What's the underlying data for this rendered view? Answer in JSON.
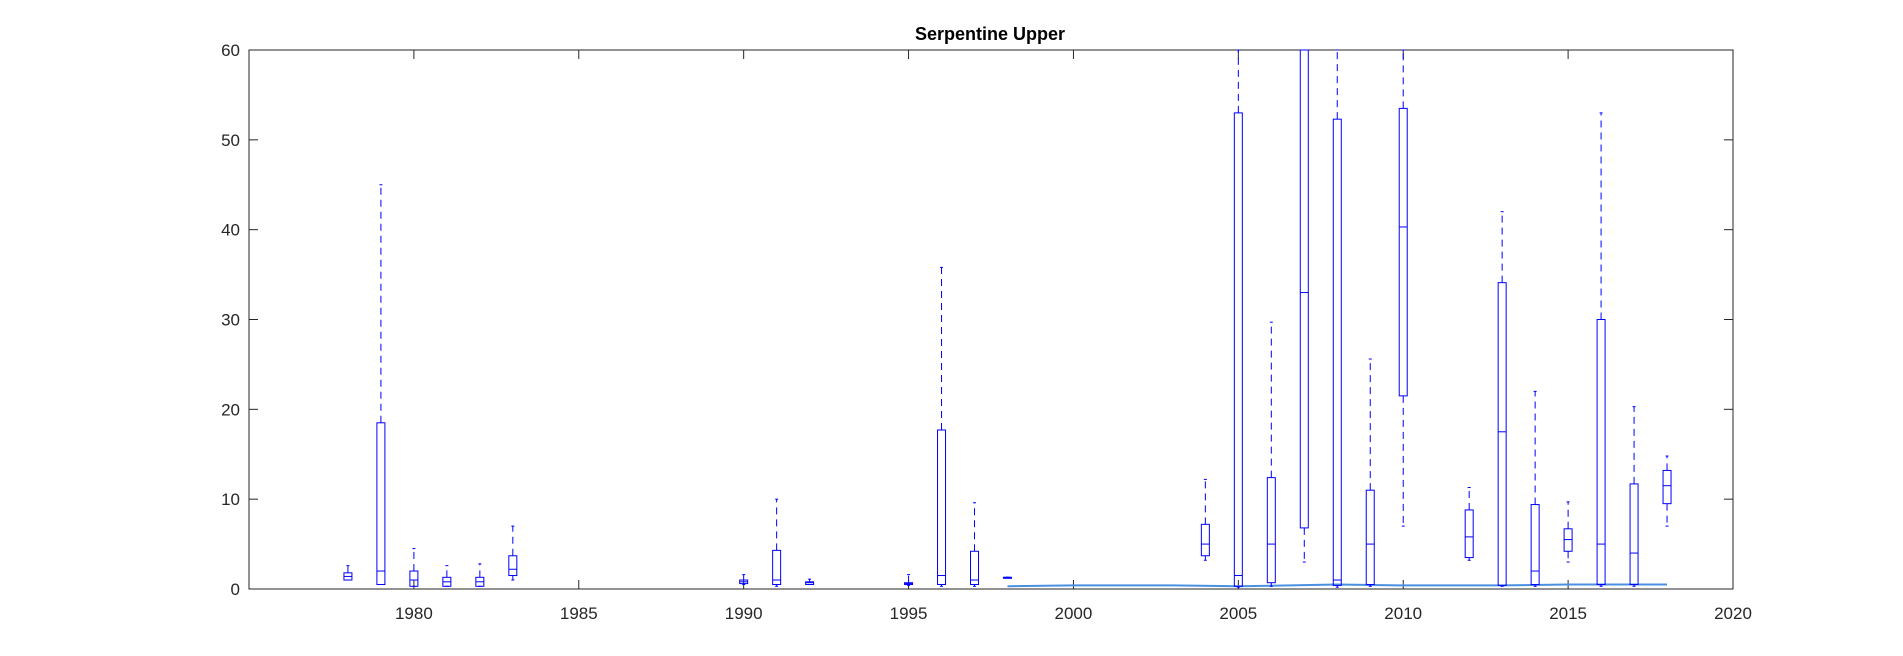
{
  "colors": {
    "box": "#0000ff",
    "trend": "#4a90e2",
    "axis": "#262626"
  },
  "chart_data": {
    "type": "box",
    "title": "Serpentine Upper",
    "xlabel": "",
    "ylabel": "",
    "xlim": [
      1975,
      2020
    ],
    "ylim": [
      0,
      60
    ],
    "xticks": [
      1980,
      1985,
      1990,
      1995,
      2000,
      2005,
      2010,
      2015,
      2020
    ],
    "yticks": [
      0,
      10,
      20,
      30,
      40,
      50,
      60
    ],
    "grid": false,
    "boxes": [
      {
        "year": 1978,
        "wlo": 1.0,
        "q1": 1.0,
        "median": 1.4,
        "q3": 1.8,
        "whi": 2.6
      },
      {
        "year": 1979,
        "wlo": 0.5,
        "q1": 0.5,
        "median": 2.0,
        "q3": 18.5,
        "whi": 45.0
      },
      {
        "year": 1980,
        "wlo": 0.3,
        "q1": 0.3,
        "median": 1.0,
        "q3": 2.0,
        "whi": 4.5
      },
      {
        "year": 1981,
        "wlo": 0.3,
        "q1": 0.3,
        "median": 0.8,
        "q3": 1.3,
        "whi": 2.6
      },
      {
        "year": 1982,
        "wlo": 0.3,
        "q1": 0.3,
        "median": 0.8,
        "q3": 1.3,
        "whi": 2.8
      },
      {
        "year": 1983,
        "wlo": 1.0,
        "q1": 1.5,
        "median": 2.2,
        "q3": 3.7,
        "whi": 7.0
      },
      {
        "year": 1990,
        "wlo": 0.5,
        "q1": 0.6,
        "median": 0.8,
        "q3": 1.0,
        "whi": 1.6
      },
      {
        "year": 1991,
        "wlo": 0.3,
        "q1": 0.5,
        "median": 1.0,
        "q3": 4.3,
        "whi": 10.0
      },
      {
        "year": 1992,
        "wlo": 0.5,
        "q1": 0.5,
        "median": 0.7,
        "q3": 0.8,
        "whi": 1.1
      },
      {
        "year": 1995,
        "wlo": 0.4,
        "q1": 0.5,
        "median": 0.6,
        "q3": 0.7,
        "whi": 1.6
      },
      {
        "year": 1996,
        "wlo": 0.3,
        "q1": 0.5,
        "median": 1.5,
        "q3": 17.7,
        "whi": 35.8
      },
      {
        "year": 1997,
        "wlo": 0.3,
        "q1": 0.5,
        "median": 1.0,
        "q3": 4.2,
        "whi": 9.6
      },
      {
        "year": 1998,
        "wlo": 1.3,
        "q1": 1.3,
        "median": 1.3,
        "q3": 1.3,
        "whi": 1.3
      },
      {
        "year": 2004,
        "wlo": 3.2,
        "q1": 3.7,
        "median": 5.0,
        "q3": 7.2,
        "whi": 12.2
      },
      {
        "year": 2005,
        "wlo": 0.2,
        "q1": 0.3,
        "median": 1.5,
        "q3": 53.0,
        "whi": 60.0
      },
      {
        "year": 2006,
        "wlo": 0.3,
        "q1": 0.7,
        "median": 5.0,
        "q3": 12.4,
        "whi": 29.7
      },
      {
        "year": 2007,
        "wlo": 3.0,
        "q1": 6.8,
        "median": 33.0,
        "q3": 60.0,
        "whi": 60.0
      },
      {
        "year": 2008,
        "wlo": 0.2,
        "q1": 0.4,
        "median": 1.0,
        "q3": 52.3,
        "whi": 60.0
      },
      {
        "year": 2009,
        "wlo": 0.3,
        "q1": 0.5,
        "median": 5.0,
        "q3": 11.0,
        "whi": 25.6
      },
      {
        "year": 2010,
        "wlo": 7.0,
        "q1": 21.5,
        "median": 40.3,
        "q3": 53.5,
        "whi": 60.0
      },
      {
        "year": 2012,
        "wlo": 3.2,
        "q1": 3.5,
        "median": 5.8,
        "q3": 8.8,
        "whi": 11.3
      },
      {
        "year": 2013,
        "wlo": 0.3,
        "q1": 0.4,
        "median": 17.5,
        "q3": 34.1,
        "whi": 42.0
      },
      {
        "year": 2014,
        "wlo": 0.3,
        "q1": 0.5,
        "median": 2.0,
        "q3": 9.4,
        "whi": 22.0
      },
      {
        "year": 2015,
        "wlo": 3.0,
        "q1": 4.2,
        "median": 5.5,
        "q3": 6.7,
        "whi": 9.7
      },
      {
        "year": 2016,
        "wlo": 0.3,
        "q1": 0.5,
        "median": 5.0,
        "q3": 30.0,
        "whi": 53.0
      },
      {
        "year": 2017,
        "wlo": 0.3,
        "q1": 0.5,
        "median": 4.0,
        "q3": 11.7,
        "whi": 20.3
      },
      {
        "year": 2018,
        "wlo": 7.0,
        "q1": 9.5,
        "median": 11.5,
        "q3": 13.2,
        "whi": 14.8
      }
    ],
    "trend_line": {
      "x": [
        1998,
        2000,
        2003,
        2005,
        2008,
        2010,
        2013,
        2015,
        2018
      ],
      "y": [
        0.3,
        0.4,
        0.4,
        0.3,
        0.5,
        0.4,
        0.4,
        0.5,
        0.5
      ]
    }
  }
}
